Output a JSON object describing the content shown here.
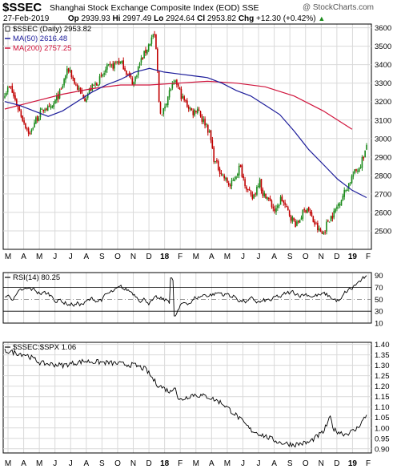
{
  "header": {
    "symbol": "$SSEC",
    "name": "Shanghai Stock Exchange Composite Index (EOD)",
    "exchange": "SSE",
    "watermark": "@ StockCharts.com",
    "date": "27-Feb-2019",
    "open_label": "Op",
    "open": "2939.93",
    "high_label": "Hi",
    "high": "2997.49",
    "low_label": "Lo",
    "low": "2924.64",
    "close_label": "Cl",
    "close": "2953.82",
    "change_label": "Chg",
    "change": "+12.30 (+0.42%)",
    "up_arrow": "▲"
  },
  "colors": {
    "up": "#1a8a1a",
    "down": "#c00000",
    "ma50": "#1c1c9a",
    "ma200": "#d0143c",
    "grid": "#d9d9d9",
    "frame": "#000000"
  },
  "chart_data": [
    {
      "type": "candlestick",
      "legend": [
        {
          "key": "price",
          "text": "$SSEC (Daily) 2953.82",
          "color": "#000000"
        },
        {
          "key": "ma50",
          "text": "MA(50) 2616.48",
          "color": "#1c1c9a"
        },
        {
          "key": "ma200",
          "text": "MA(200) 2757.25",
          "color": "#d0143c"
        }
      ],
      "legend_position": "top-left",
      "ylim": [
        2400,
        3620
      ],
      "y_ticks": [
        2500,
        2600,
        2700,
        2800,
        2900,
        3000,
        3100,
        3200,
        3300,
        3400,
        3500,
        3600
      ],
      "grid": true,
      "price_path": [
        [
          0,
          3250
        ],
        [
          0.02,
          3280
        ],
        [
          0.04,
          3200
        ],
        [
          0.06,
          3130
        ],
        [
          0.08,
          3060
        ],
        [
          0.095,
          3020
        ],
        [
          0.11,
          3090
        ],
        [
          0.13,
          3130
        ],
        [
          0.15,
          3170
        ],
        [
          0.17,
          3150
        ],
        [
          0.19,
          3210
        ],
        [
          0.21,
          3260
        ],
        [
          0.225,
          3340
        ],
        [
          0.24,
          3380
        ],
        [
          0.26,
          3300
        ],
        [
          0.28,
          3250
        ],
        [
          0.3,
          3220
        ],
        [
          0.32,
          3270
        ],
        [
          0.34,
          3300
        ],
        [
          0.36,
          3330
        ],
        [
          0.38,
          3380
        ],
        [
          0.4,
          3390
        ],
        [
          0.42,
          3420
        ],
        [
          0.44,
          3400
        ],
        [
          0.46,
          3340
        ],
        [
          0.48,
          3300
        ],
        [
          0.5,
          3400
        ],
        [
          0.52,
          3460
        ],
        [
          0.54,
          3520
        ],
        [
          0.555,
          3570
        ],
        [
          0.565,
          3460
        ],
        [
          0.575,
          3180
        ],
        [
          0.585,
          3120
        ],
        [
          0.6,
          3200
        ],
        [
          0.62,
          3280
        ],
        [
          0.64,
          3300
        ],
        [
          0.66,
          3220
        ],
        [
          0.68,
          3180
        ],
        [
          0.7,
          3140
        ],
        [
          0.72,
          3170
        ],
        [
          0.735,
          3100
        ],
        [
          0.75,
          3080
        ],
        [
          0.765,
          3010
        ],
        [
          0.78,
          2880
        ],
        [
          0.8,
          2830
        ],
        [
          0.82,
          2780
        ],
        [
          0.84,
          2740
        ],
        [
          0.86,
          2800
        ],
        [
          0.875,
          2850
        ],
        [
          0.89,
          2780
        ],
        [
          0.905,
          2720
        ],
        [
          0.92,
          2670
        ],
        [
          0.935,
          2720
        ],
        [
          0.95,
          2790
        ],
        [
          0.96,
          2680
        ],
        [
          0.97,
          2700
        ]
      ],
      "price_path_2": [
        [
          0,
          2700
        ],
        [
          0.03,
          2650
        ],
        [
          0.06,
          2600
        ],
        [
          0.09,
          2680
        ],
        [
          0.12,
          2620
        ],
        [
          0.15,
          2570
        ],
        [
          0.18,
          2530
        ],
        [
          0.21,
          2590
        ],
        [
          0.24,
          2630
        ],
        [
          0.27,
          2560
        ],
        [
          0.3,
          2510
        ],
        [
          0.33,
          2480
        ],
        [
          0.36,
          2560
        ],
        [
          0.39,
          2590
        ],
        [
          0.42,
          2650
        ],
        [
          0.46,
          2720
        ],
        [
          0.5,
          2800
        ],
        [
          0.54,
          2850
        ],
        [
          0.58,
          2950
        ]
      ],
      "ma50": [
        [
          0,
          3200
        ],
        [
          0.04,
          3180
        ],
        [
          0.08,
          3150
        ],
        [
          0.12,
          3120
        ],
        [
          0.16,
          3150
        ],
        [
          0.2,
          3200
        ],
        [
          0.24,
          3250
        ],
        [
          0.28,
          3290
        ],
        [
          0.32,
          3320
        ],
        [
          0.36,
          3360
        ],
        [
          0.4,
          3380
        ],
        [
          0.44,
          3360
        ],
        [
          0.48,
          3350
        ],
        [
          0.52,
          3340
        ],
        [
          0.56,
          3330
        ],
        [
          0.6,
          3300
        ],
        [
          0.64,
          3260
        ],
        [
          0.68,
          3230
        ],
        [
          0.72,
          3180
        ],
        [
          0.76,
          3130
        ],
        [
          0.8,
          3040
        ],
        [
          0.84,
          2940
        ],
        [
          0.88,
          2860
        ],
        [
          0.92,
          2780
        ],
        [
          0.96,
          2720
        ],
        [
          1.0,
          2680
        ]
      ],
      "ma200": [
        [
          0,
          3160
        ],
        [
          0.08,
          3200
        ],
        [
          0.16,
          3240
        ],
        [
          0.24,
          3270
        ],
        [
          0.32,
          3290
        ],
        [
          0.4,
          3290
        ],
        [
          0.48,
          3300
        ],
        [
          0.56,
          3310
        ],
        [
          0.64,
          3300
        ],
        [
          0.72,
          3280
        ],
        [
          0.8,
          3230
        ],
        [
          0.88,
          3150
        ],
        [
          0.96,
          3050
        ]
      ],
      "x_labels": [
        "M",
        "A",
        "M",
        "J",
        "J",
        "A",
        "S",
        "O",
        "N",
        "D",
        "18",
        "F",
        "M",
        "A",
        "M",
        "J",
        "J",
        "A",
        "S",
        "O",
        "N",
        "D",
        "19",
        "F"
      ]
    },
    {
      "type": "line",
      "legend": [
        {
          "key": "rsi",
          "text": "RSI(14) 80.25",
          "color": "#000000"
        }
      ],
      "ylim": [
        10,
        95
      ],
      "y_ticks": [
        10,
        30,
        50,
        70,
        90
      ],
      "ref_lines": [
        30,
        70
      ],
      "grid": true
    },
    {
      "type": "line",
      "legend": [
        {
          "key": "ratio",
          "text": "$SSEC:$SPX 1.06",
          "color": "#000000"
        }
      ],
      "ylim": [
        0.88,
        1.41
      ],
      "y_ticks": [
        0.9,
        0.95,
        1.0,
        1.05,
        1.1,
        1.15,
        1.2,
        1.25,
        1.3,
        1.35,
        1.4
      ],
      "y_tick_labels": [
        "0.90",
        "0.95",
        "1.00",
        "1.05",
        "1.10",
        "1.15",
        "1.20",
        "1.25",
        "1.30",
        "1.35",
        "1.40"
      ],
      "grid": true
    }
  ]
}
